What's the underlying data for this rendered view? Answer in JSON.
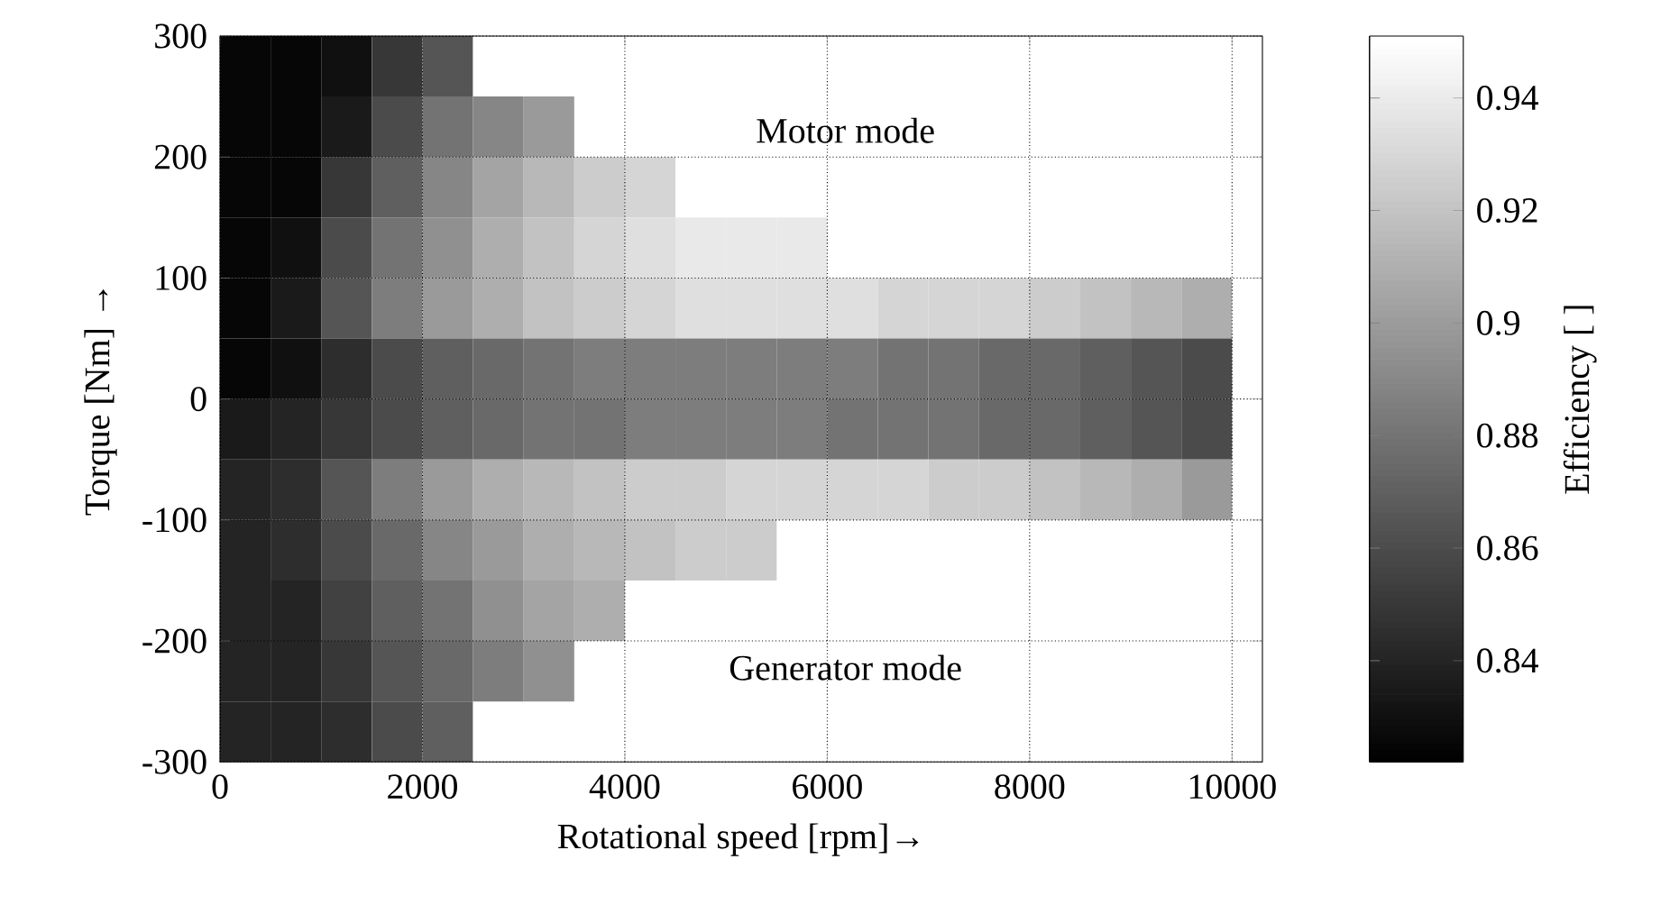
{
  "chart_data": {
    "type": "heatmap",
    "xlabel": "Rotational speed [rpm]→",
    "ylabel": "Torque [Nm]   →",
    "clabel": "Efficiency [ ]",
    "x": [
      250,
      750,
      1250,
      1750,
      2250,
      2750,
      3250,
      3750,
      4250,
      4750,
      5250,
      5750,
      6250,
      6750,
      7250,
      7750,
      8250,
      8750,
      9250,
      9750,
      10250
    ],
    "y": [
      275,
      225,
      175,
      125,
      75,
      25,
      -25,
      -75,
      -125,
      -175,
      -225,
      -275
    ],
    "cells": [
      [
        0.825,
        0.825,
        0.83,
        0.85,
        0.865,
        null,
        null,
        null,
        null,
        null,
        null,
        null,
        null,
        null,
        null,
        null,
        null,
        null,
        null,
        null,
        null
      ],
      [
        0.825,
        0.825,
        0.835,
        0.86,
        0.88,
        0.89,
        0.9,
        null,
        null,
        null,
        null,
        null,
        null,
        null,
        null,
        null,
        null,
        null,
        null,
        null,
        null
      ],
      [
        0.825,
        0.825,
        0.85,
        0.87,
        0.89,
        0.905,
        0.915,
        0.925,
        0.93,
        null,
        null,
        null,
        null,
        null,
        null,
        null,
        null,
        null,
        null,
        null,
        null
      ],
      [
        0.825,
        0.83,
        0.86,
        0.88,
        0.895,
        0.91,
        0.92,
        0.93,
        0.935,
        0.94,
        0.94,
        0.94,
        null,
        null,
        null,
        null,
        null,
        null,
        null,
        null,
        null
      ],
      [
        0.825,
        0.835,
        0.865,
        0.885,
        0.9,
        0.91,
        0.92,
        0.925,
        0.93,
        0.935,
        0.935,
        0.935,
        0.935,
        0.93,
        0.93,
        0.93,
        0.925,
        0.92,
        0.915,
        0.91,
        null
      ],
      [
        0.825,
        0.83,
        0.845,
        0.86,
        0.87,
        0.875,
        0.88,
        0.885,
        0.885,
        0.885,
        0.885,
        0.885,
        0.885,
        0.88,
        0.88,
        0.875,
        0.875,
        0.87,
        0.865,
        0.86,
        null
      ],
      [
        0.835,
        0.84,
        0.85,
        0.86,
        0.87,
        0.875,
        0.88,
        0.88,
        0.885,
        0.885,
        0.885,
        0.885,
        0.88,
        0.88,
        0.88,
        0.875,
        0.875,
        0.87,
        0.865,
        0.86,
        null
      ],
      [
        0.84,
        0.845,
        0.865,
        0.885,
        0.9,
        0.91,
        0.915,
        0.92,
        0.925,
        0.925,
        0.93,
        0.93,
        0.93,
        0.93,
        0.925,
        0.925,
        0.92,
        0.915,
        0.91,
        0.9,
        null
      ],
      [
        0.84,
        0.845,
        0.86,
        0.875,
        0.89,
        0.9,
        0.91,
        0.915,
        0.92,
        0.925,
        0.925,
        null,
        null,
        null,
        null,
        null,
        null,
        null,
        null,
        null,
        null
      ],
      [
        0.84,
        0.84,
        0.855,
        0.87,
        0.88,
        0.895,
        0.905,
        0.91,
        null,
        null,
        null,
        null,
        null,
        null,
        null,
        null,
        null,
        null,
        null,
        null,
        null
      ],
      [
        0.84,
        0.84,
        0.85,
        0.865,
        0.875,
        0.885,
        0.895,
        null,
        null,
        null,
        null,
        null,
        null,
        null,
        null,
        null,
        null,
        null,
        null,
        null,
        null
      ],
      [
        0.84,
        0.84,
        0.845,
        0.86,
        0.87,
        null,
        null,
        null,
        null,
        null,
        null,
        null,
        null,
        null,
        null,
        null,
        null,
        null,
        null,
        null,
        null
      ]
    ],
    "xlim": [
      0,
      10300
    ],
    "xticks": [
      0,
      2000,
      4000,
      6000,
      8000,
      10000
    ],
    "ylim": [
      -300,
      300
    ],
    "yticks": [
      -300,
      -200,
      -100,
      0,
      100,
      200,
      300
    ],
    "clim": [
      0.822,
      0.951
    ],
    "cticks": [
      0.84,
      0.86,
      0.88,
      0.9,
      0.92,
      0.94
    ],
    "grid": true,
    "annotations": [
      "Motor mode",
      "Generator mode"
    ]
  }
}
